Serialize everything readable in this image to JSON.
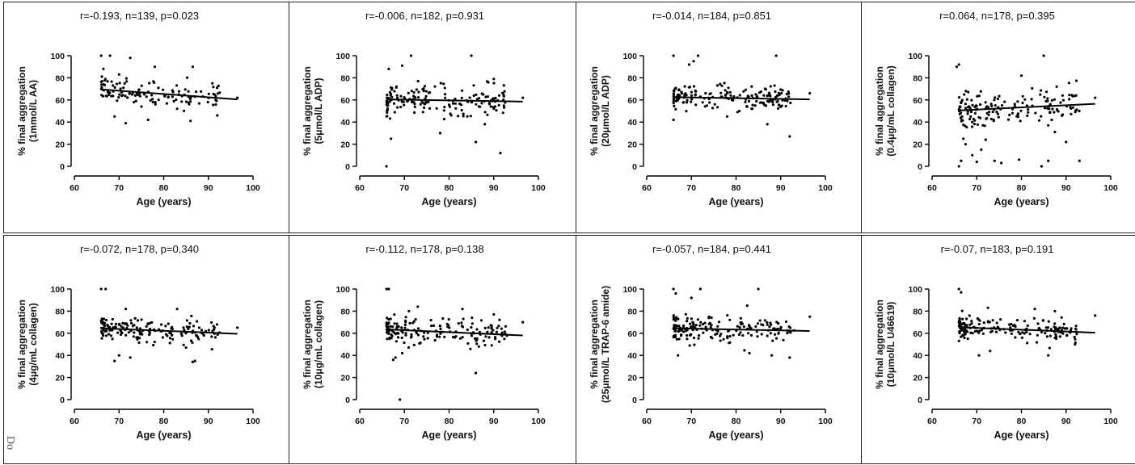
{
  "figure": {
    "side_text": "Do",
    "frame_color": "#222222",
    "point_color": "#000000",
    "line_color": "#000000"
  },
  "chart_data": [
    {
      "type": "scatter",
      "title": "r=-0.193, n=139, p=0.023",
      "xlabel": "Age (years)",
      "ylabel": [
        "% final aggregation",
        "(1mmol/L AA)"
      ],
      "xlim": [
        60,
        100
      ],
      "ylim": [
        0,
        100
      ],
      "xticks": [
        "60",
        "70",
        "80",
        "90",
        "100"
      ],
      "yticks": [
        "0",
        "20",
        "40",
        "60",
        "80",
        "100"
      ],
      "trend": [
        [
          66,
          69.5
        ],
        [
          96.5,
          60.5
        ]
      ],
      "n": 139,
      "seed": 11,
      "spread": 8,
      "center": 64,
      "outliers": [
        [
          66,
          100
        ],
        [
          68,
          100
        ],
        [
          72.5,
          98
        ],
        [
          78,
          90
        ],
        [
          86.5,
          90
        ],
        [
          66.5,
          88
        ],
        [
          70,
          83
        ],
        [
          69,
          45
        ],
        [
          71.5,
          39
        ],
        [
          76.5,
          42
        ],
        [
          86,
          41
        ],
        [
          92,
          46
        ],
        [
          83,
          52
        ],
        [
          96.5,
          62
        ]
      ]
    },
    {
      "type": "scatter",
      "title": "r=-0.006, n=182, p=0.931",
      "xlabel": "Age (years)",
      "ylabel": [
        "% final aggregation",
        "(5μmol/L ADP)"
      ],
      "xlim": [
        60,
        100
      ],
      "ylim": [
        0,
        100
      ],
      "xticks": [
        "60",
        "70",
        "80",
        "90",
        "100"
      ],
      "yticks": [
        "0",
        "20",
        "40",
        "60",
        "80",
        "100"
      ],
      "trend": [
        [
          66,
          60.5
        ],
        [
          96.5,
          58.5
        ]
      ],
      "n": 182,
      "seed": 23,
      "spread": 9,
      "center": 60,
      "outliers": [
        [
          66,
          0
        ],
        [
          66.5,
          88
        ],
        [
          67,
          25
        ],
        [
          69.5,
          91
        ],
        [
          71.5,
          100
        ],
        [
          85,
          100
        ],
        [
          86,
          22
        ],
        [
          91.5,
          12
        ],
        [
          88,
          38
        ],
        [
          78,
          30
        ],
        [
          66,
          45
        ],
        [
          96.5,
          62
        ],
        [
          90,
          79
        ]
      ]
    },
    {
      "type": "scatter",
      "title": "r=-0.014, n=184, p=0.851",
      "xlabel": "Age (years)",
      "ylabel": [
        "% final aggregation",
        "(20μmol/L ADP)"
      ],
      "xlim": [
        60,
        100
      ],
      "ylim": [
        0,
        100
      ],
      "xticks": [
        "60",
        "70",
        "80",
        "90",
        "100"
      ],
      "yticks": [
        "0",
        "20",
        "40",
        "60",
        "80",
        "100"
      ],
      "trend": [
        [
          66,
          62.5
        ],
        [
          96.5,
          60.5
        ]
      ],
      "n": 184,
      "seed": 37,
      "spread": 7,
      "center": 62,
      "outliers": [
        [
          66,
          100
        ],
        [
          71.5,
          100
        ],
        [
          69.5,
          92
        ],
        [
          70.5,
          95
        ],
        [
          89,
          100
        ],
        [
          92,
          27
        ],
        [
          87,
          38
        ],
        [
          96.5,
          66
        ],
        [
          66,
          42
        ],
        [
          78,
          45
        ]
      ]
    },
    {
      "type": "scatter",
      "title": "r=0.064, n=178, p=0.395",
      "xlabel": "Age (years)",
      "ylabel": [
        "% final aggregation",
        "(0.4μg/mL collagen)"
      ],
      "xlim": [
        60,
        100
      ],
      "ylim": [
        0,
        100
      ],
      "xticks": [
        "60",
        "70",
        "80",
        "90",
        "100"
      ],
      "yticks": [
        "0",
        "20",
        "40",
        "60",
        "80",
        "100"
      ],
      "trend": [
        [
          66,
          50.5
        ],
        [
          96.5,
          56.5
        ]
      ],
      "n": 178,
      "seed": 41,
      "spread": 11,
      "center": 56,
      "outliers": [
        [
          66,
          0
        ],
        [
          66.5,
          5
        ],
        [
          67,
          25
        ],
        [
          67.5,
          20
        ],
        [
          69,
          10
        ],
        [
          70,
          4
        ],
        [
          71,
          15
        ],
        [
          72,
          24
        ],
        [
          74,
          5
        ],
        [
          75.5,
          3
        ],
        [
          79.5,
          6
        ],
        [
          84.5,
          0
        ],
        [
          86,
          5
        ],
        [
          87.5,
          31
        ],
        [
          86,
          37
        ],
        [
          85,
          100
        ],
        [
          66,
          92
        ],
        [
          65.5,
          90
        ],
        [
          90,
          22
        ],
        [
          93,
          5
        ],
        [
          78,
          48
        ],
        [
          69,
          40
        ],
        [
          80,
          82
        ],
        [
          96.5,
          62
        ]
      ]
    },
    {
      "type": "scatter",
      "title": "r=-0.072, n=178, p=0.340",
      "xlabel": "Age (years)",
      "ylabel": [
        "% final aggregation",
        "(4μg/mL collagen)"
      ],
      "xlim": [
        60,
        100
      ],
      "ylim": [
        0,
        100
      ],
      "xticks": [
        "60",
        "70",
        "80",
        "90",
        "100"
      ],
      "yticks": [
        "0",
        "20",
        "40",
        "60",
        "80",
        "100"
      ],
      "trend": [
        [
          66,
          64.5
        ],
        [
          96.5,
          59.5
        ]
      ],
      "n": 178,
      "seed": 53,
      "spread": 7,
      "center": 62,
      "outliers": [
        [
          66,
          100
        ],
        [
          67,
          100
        ],
        [
          69,
          35
        ],
        [
          70,
          40
        ],
        [
          72.5,
          38
        ],
        [
          86.5,
          34
        ],
        [
          87,
          35
        ],
        [
          83,
          82
        ],
        [
          71.5,
          82
        ],
        [
          96.5,
          65
        ],
        [
          85,
          47
        ]
      ]
    },
    {
      "type": "scatter",
      "title": "r=-0.112, n=178, p=0.138",
      "xlabel": "Age (years)",
      "ylabel": [
        "% final aggregation",
        "(10μg/mL collagen)"
      ],
      "xlim": [
        60,
        100
      ],
      "ylim": [
        0,
        100
      ],
      "xticks": [
        "60",
        "70",
        "80",
        "90",
        "100"
      ],
      "yticks": [
        "0",
        "20",
        "40",
        "60",
        "80",
        "100"
      ],
      "trend": [
        [
          66,
          63.5
        ],
        [
          96.5,
          58.0
        ]
      ],
      "n": 178,
      "seed": 67,
      "spread": 8,
      "center": 61,
      "outliers": [
        [
          66,
          100
        ],
        [
          66.5,
          100
        ],
        [
          69,
          0
        ],
        [
          67.5,
          36
        ],
        [
          68,
          38
        ],
        [
          69.5,
          42
        ],
        [
          86,
          24
        ],
        [
          73,
          84
        ],
        [
          83,
          82
        ],
        [
          90,
          77
        ],
        [
          96.5,
          70
        ],
        [
          71,
          80
        ]
      ]
    },
    {
      "type": "scatter",
      "title": "r=-0.057, n=184, p=0.441",
      "xlabel": "Age (years)",
      "ylabel": [
        "% final aggregation",
        "(25μmol/L TRAP-6 amide)"
      ],
      "xlim": [
        60,
        100
      ],
      "ylim": [
        0,
        100
      ],
      "xticks": [
        "60",
        "70",
        "80",
        "90",
        "100"
      ],
      "yticks": [
        "0",
        "20",
        "40",
        "60",
        "80",
        "100"
      ],
      "trend": [
        [
          66,
          64.5
        ],
        [
          96.5,
          62.0
        ]
      ],
      "n": 184,
      "seed": 79,
      "spread": 8,
      "center": 63,
      "outliers": [
        [
          66,
          100
        ],
        [
          66.5,
          96
        ],
        [
          72,
          100
        ],
        [
          85,
          100
        ],
        [
          70,
          92
        ],
        [
          92,
          38
        ],
        [
          88,
          40
        ],
        [
          83,
          42
        ],
        [
          96.5,
          75
        ],
        [
          82.5,
          85
        ],
        [
          67,
          40
        ]
      ]
    },
    {
      "type": "scatter",
      "title": "r=-0.07, n=183, p=0.191",
      "xlabel": "Age (years)",
      "ylabel": [
        "% final aggregation",
        "(10μmol/L U46619)"
      ],
      "xlim": [
        60,
        100
      ],
      "ylim": [
        0,
        100
      ],
      "xticks": [
        "60",
        "70",
        "80",
        "90",
        "100"
      ],
      "yticks": [
        "0",
        "20",
        "40",
        "60",
        "80",
        "100"
      ],
      "trend": [
        [
          66,
          65.5
        ],
        [
          96.5,
          60.5
        ]
      ],
      "n": 183,
      "seed": 97,
      "spread": 7,
      "center": 62,
      "outliers": [
        [
          66,
          100
        ],
        [
          66.5,
          97
        ],
        [
          72.5,
          83
        ],
        [
          83,
          82
        ],
        [
          87.5,
          80
        ],
        [
          96.5,
          76
        ],
        [
          70.5,
          40
        ],
        [
          73,
          44
        ],
        [
          86,
          40
        ],
        [
          92,
          50
        ],
        [
          68,
          55
        ]
      ]
    }
  ]
}
